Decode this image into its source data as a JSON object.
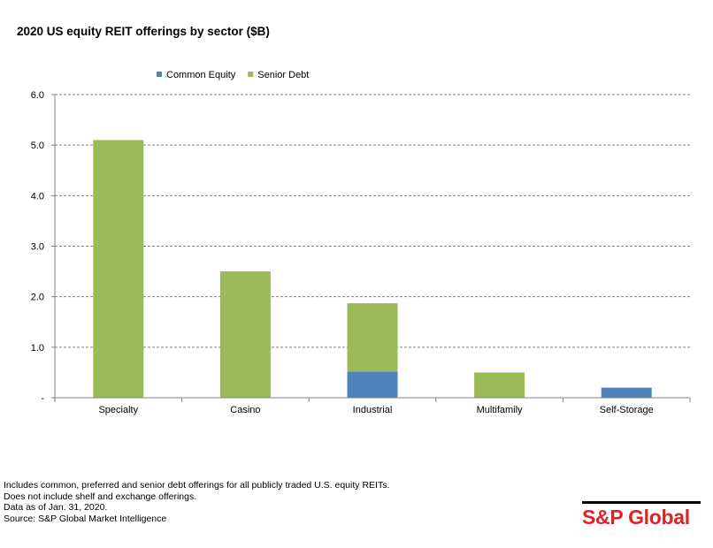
{
  "chart_data": {
    "type": "bar",
    "stacked": true,
    "title": "2020 US equity REIT offerings by sector ($B)",
    "categories": [
      "Specialty",
      "Casino",
      "Industrial",
      "Multifamily",
      "Self-Storage"
    ],
    "series": [
      {
        "name": "Common Equity",
        "color": "#4f81bd",
        "values": [
          0,
          0,
          0.52,
          0,
          0.2
        ]
      },
      {
        "name": "Senior Debt",
        "color": "#9bbb59",
        "values": [
          5.1,
          2.5,
          1.35,
          0.5,
          0
        ]
      }
    ],
    "ylim": [
      0,
      6
    ],
    "yticks": [
      0,
      1,
      2,
      3,
      4,
      5,
      6
    ],
    "ytick_labels": [
      "-",
      "1.0",
      "2.0",
      "3.0",
      "4.0",
      "5.0",
      "6.0"
    ],
    "xlabel": "",
    "ylabel": "",
    "grid": true,
    "legend_position": "top-center"
  },
  "footnotes": [
    "Includes common, preferred and senior debt offerings for all publicly traded U.S. equity REITs.",
    "Does not include shelf and exchange offerings.",
    "Data as of Jan. 31, 2020.",
    "Source: S&P Global Market Intelligence"
  ],
  "logo": {
    "text": "S&P Global",
    "color": "#e41f26"
  }
}
